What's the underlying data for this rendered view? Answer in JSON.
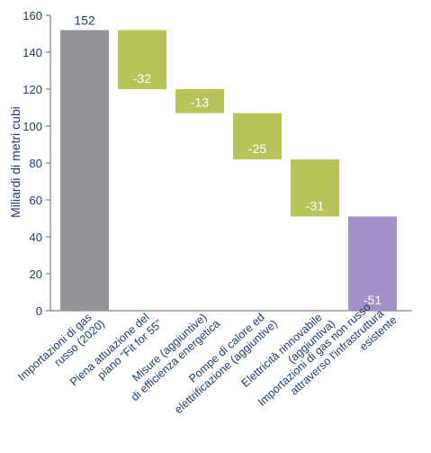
{
  "chart_data": {
    "type": "waterfall",
    "y_label": "Miliardi di metri cubi",
    "categories": [
      "Importazioni di gas\nrusso (2020)",
      "Piena attuazione del\npiano “Fit for 55”",
      "Misure (aggiuntive)\ndi efficienza energetica",
      "Pompe di calore ed\nelettrificazione (aggiuntive)",
      "Elettricità rinnovabile\n(aggiuntiva)",
      "Importazioni di gas non russo\nattraverso l'infrastruttura\nesistente"
    ],
    "values": [
      152,
      -32,
      -13,
      -25,
      -31,
      -51
    ],
    "colors": [
      "#939598",
      "#b8c45a",
      "#b8c45a",
      "#b8c45a",
      "#b8c45a",
      "#a390c6"
    ],
    "ylim": [
      0,
      160
    ],
    "yticks": [
      0,
      20,
      40,
      60,
      80,
      100,
      120,
      140,
      160
    ]
  }
}
